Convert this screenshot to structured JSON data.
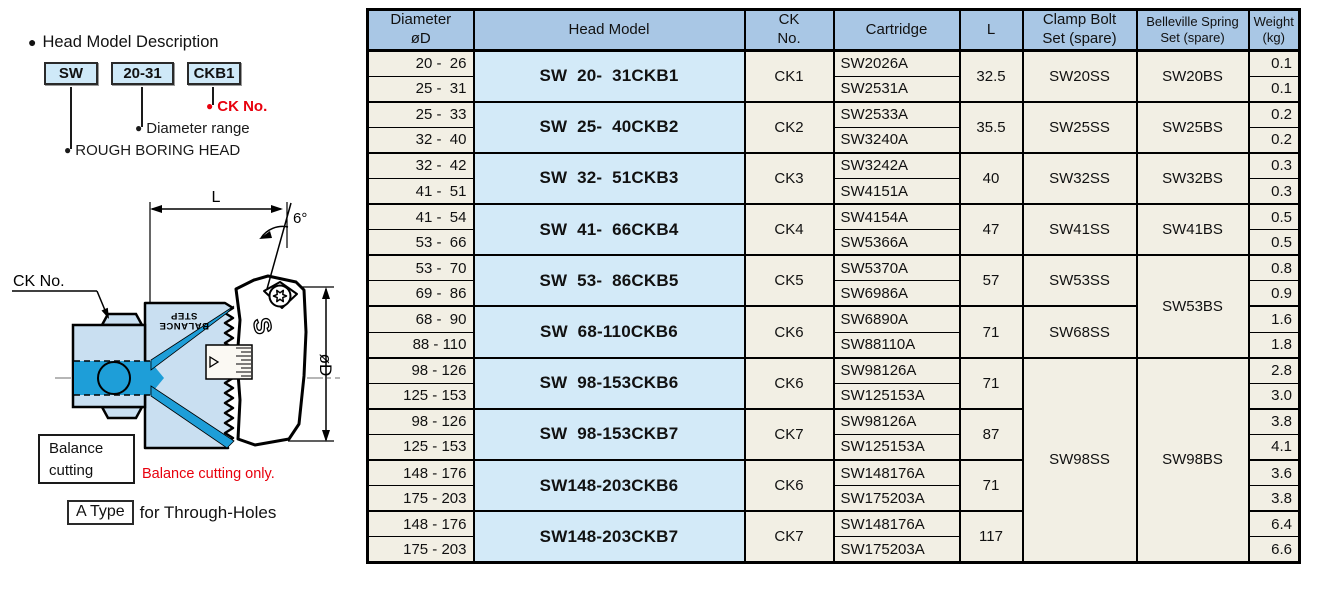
{
  "colors": {
    "header_bg": "#a9c7e5",
    "model_bg": "#d3eaf8",
    "cell_bg": "#f2efe4",
    "legend_box_bg": "#cfe9f8",
    "red": "#e8000d",
    "body_blue": "#c9dff1",
    "channel_blue": "#1e9ed8"
  },
  "legend": {
    "bullet": "●",
    "heading": "Head Model Description",
    "boxes": [
      {
        "label": "SW"
      },
      {
        "label": "20-31"
      },
      {
        "label": "CKB1"
      }
    ],
    "callouts": [
      {
        "label": "CK No."
      },
      {
        "label": "Diameter range"
      },
      {
        "label": "ROUGH BORING HEAD"
      }
    ]
  },
  "diagram": {
    "dim_length": "L",
    "angle": "6°",
    "ck_label": "CK No.",
    "diameter_label": "øD",
    "balance_line1": "BALANCE",
    "balance_line2": "STEP",
    "balance_box": "Balance\ncutting",
    "balance_note": "Balance cutting only.",
    "type_box": "A Type",
    "type_suffix": "for Through-Holes"
  },
  "table": {
    "headers": [
      {
        "lines": "Diameter\nøD",
        "small": false
      },
      {
        "lines": "Head Model",
        "small": false
      },
      {
        "lines": "CK\nNo.",
        "small": false
      },
      {
        "lines": "Cartridge",
        "small": false
      },
      {
        "lines": "L",
        "small": false
      },
      {
        "lines": "Clamp Bolt\nSet (spare)",
        "small": false
      },
      {
        "lines": "Belleville Spring\nSet (spare)",
        "small": true
      },
      {
        "lines": "Weight\n(kg)",
        "small": true
      }
    ],
    "group_starts": [
      0,
      2,
      4,
      6,
      8,
      10,
      12,
      14,
      16,
      18
    ],
    "rows": [
      [
        {
          "col": "dia",
          "t": "20 -  26"
        },
        {
          "col": "model",
          "t": "SW  20-  31CKB1",
          "rs": 2
        },
        {
          "col": "ck",
          "t": "CK1",
          "rs": 2
        },
        {
          "col": "cart",
          "t": "SW2026A"
        },
        {
          "col": "l",
          "t": "32.5",
          "rs": 2
        },
        {
          "col": "clamp",
          "t": "SW20SS",
          "rs": 2
        },
        {
          "col": "spring",
          "t": "SW20BS",
          "rs": 2
        },
        {
          "col": "wt",
          "t": "0.1"
        }
      ],
      [
        {
          "col": "dia",
          "t": "25 -  31"
        },
        {
          "col": "cart",
          "t": "SW2531A"
        },
        {
          "col": "wt",
          "t": "0.1"
        }
      ],
      [
        {
          "col": "dia",
          "t": "25 -  33"
        },
        {
          "col": "model",
          "t": "SW  25-  40CKB2",
          "rs": 2
        },
        {
          "col": "ck",
          "t": "CK2",
          "rs": 2
        },
        {
          "col": "cart",
          "t": "SW2533A"
        },
        {
          "col": "l",
          "t": "35.5",
          "rs": 2
        },
        {
          "col": "clamp",
          "t": "SW25SS",
          "rs": 2
        },
        {
          "col": "spring",
          "t": "SW25BS",
          "rs": 2
        },
        {
          "col": "wt",
          "t": "0.2"
        }
      ],
      [
        {
          "col": "dia",
          "t": "32 -  40"
        },
        {
          "col": "cart",
          "t": "SW3240A"
        },
        {
          "col": "wt",
          "t": "0.2"
        }
      ],
      [
        {
          "col": "dia",
          "t": "32 -  42"
        },
        {
          "col": "model",
          "t": "SW  32-  51CKB3",
          "rs": 2
        },
        {
          "col": "ck",
          "t": "CK3",
          "rs": 2
        },
        {
          "col": "cart",
          "t": "SW3242A"
        },
        {
          "col": "l",
          "t": "40",
          "rs": 2
        },
        {
          "col": "clamp",
          "t": "SW32SS",
          "rs": 2
        },
        {
          "col": "spring",
          "t": "SW32BS",
          "rs": 2
        },
        {
          "col": "wt",
          "t": "0.3"
        }
      ],
      [
        {
          "col": "dia",
          "t": "41 -  51"
        },
        {
          "col": "cart",
          "t": "SW4151A"
        },
        {
          "col": "wt",
          "t": "0.3"
        }
      ],
      [
        {
          "col": "dia",
          "t": "41 -  54"
        },
        {
          "col": "model",
          "t": "SW  41-  66CKB4",
          "rs": 2
        },
        {
          "col": "ck",
          "t": "CK4",
          "rs": 2
        },
        {
          "col": "cart",
          "t": "SW4154A"
        },
        {
          "col": "l",
          "t": "47",
          "rs": 2
        },
        {
          "col": "clamp",
          "t": "SW41SS",
          "rs": 2
        },
        {
          "col": "spring",
          "t": "SW41BS",
          "rs": 2
        },
        {
          "col": "wt",
          "t": "0.5"
        }
      ],
      [
        {
          "col": "dia",
          "t": "53 -  66"
        },
        {
          "col": "cart",
          "t": "SW5366A"
        },
        {
          "col": "wt",
          "t": "0.5"
        }
      ],
      [
        {
          "col": "dia",
          "t": "53 -  70"
        },
        {
          "col": "model",
          "t": "SW  53-  86CKB5",
          "rs": 2
        },
        {
          "col": "ck",
          "t": "CK5",
          "rs": 2
        },
        {
          "col": "cart",
          "t": "SW5370A"
        },
        {
          "col": "l",
          "t": "57",
          "rs": 2
        },
        {
          "col": "clamp",
          "t": "SW53SS",
          "rs": 2
        },
        {
          "col": "spring",
          "t": "SW53BS",
          "rs": 4
        },
        {
          "col": "wt",
          "t": "0.8"
        }
      ],
      [
        {
          "col": "dia",
          "t": "69 -  86"
        },
        {
          "col": "cart",
          "t": "SW6986A"
        },
        {
          "col": "wt",
          "t": "0.9"
        }
      ],
      [
        {
          "col": "dia",
          "t": "68 -  90"
        },
        {
          "col": "model",
          "t": "SW  68-110CKB6",
          "rs": 2
        },
        {
          "col": "ck",
          "t": "CK6",
          "rs": 2
        },
        {
          "col": "cart",
          "t": "SW6890A"
        },
        {
          "col": "l",
          "t": "71",
          "rs": 2
        },
        {
          "col": "clamp",
          "t": "SW68SS",
          "rs": 2
        },
        {
          "col": "wt",
          "t": "1.6"
        }
      ],
      [
        {
          "col": "dia",
          "t": "88 - 110"
        },
        {
          "col": "cart",
          "t": "SW88110A"
        },
        {
          "col": "wt",
          "t": "1.8"
        }
      ],
      [
        {
          "col": "dia",
          "t": "98 - 126"
        },
        {
          "col": "model",
          "t": "SW  98-153CKB6",
          "rs": 2
        },
        {
          "col": "ck",
          "t": "CK6",
          "rs": 2
        },
        {
          "col": "cart",
          "t": "SW98126A"
        },
        {
          "col": "l",
          "t": "71",
          "rs": 2
        },
        {
          "col": "clamp",
          "t": "SW98SS",
          "rs": 8
        },
        {
          "col": "spring",
          "t": "SW98BS",
          "rs": 8
        },
        {
          "col": "wt",
          "t": "2.8"
        }
      ],
      [
        {
          "col": "dia",
          "t": "125 - 153"
        },
        {
          "col": "cart",
          "t": "SW125153A"
        },
        {
          "col": "wt",
          "t": "3.0"
        }
      ],
      [
        {
          "col": "dia",
          "t": "98 - 126"
        },
        {
          "col": "model",
          "t": "SW  98-153CKB7",
          "rs": 2
        },
        {
          "col": "ck",
          "t": "CK7",
          "rs": 2
        },
        {
          "col": "cart",
          "t": "SW98126A"
        },
        {
          "col": "l",
          "t": "87",
          "rs": 2
        },
        {
          "col": "wt",
          "t": "3.8"
        }
      ],
      [
        {
          "col": "dia",
          "t": "125 - 153"
        },
        {
          "col": "cart",
          "t": "SW125153A"
        },
        {
          "col": "wt",
          "t": "4.1"
        }
      ],
      [
        {
          "col": "dia",
          "t": "148 - 176"
        },
        {
          "col": "model",
          "t": "SW148-203CKB6",
          "rs": 2
        },
        {
          "col": "ck",
          "t": "CK6",
          "rs": 2
        },
        {
          "col": "cart",
          "t": "SW148176A"
        },
        {
          "col": "l",
          "t": "71",
          "rs": 2
        },
        {
          "col": "wt",
          "t": "3.6"
        }
      ],
      [
        {
          "col": "dia",
          "t": "175 - 203"
        },
        {
          "col": "cart",
          "t": "SW175203A"
        },
        {
          "col": "wt",
          "t": "3.8"
        }
      ],
      [
        {
          "col": "dia",
          "t": "148 - 176"
        },
        {
          "col": "model",
          "t": "SW148-203CKB7",
          "rs": 2
        },
        {
          "col": "ck",
          "t": "CK7",
          "rs": 2
        },
        {
          "col": "cart",
          "t": "SW148176A"
        },
        {
          "col": "l",
          "t": "117",
          "rs": 2
        },
        {
          "col": "wt",
          "t": "6.4"
        }
      ],
      [
        {
          "col": "dia",
          "t": "175 - 203"
        },
        {
          "col": "cart",
          "t": "SW175203A"
        },
        {
          "col": "wt",
          "t": "6.6"
        }
      ]
    ]
  }
}
